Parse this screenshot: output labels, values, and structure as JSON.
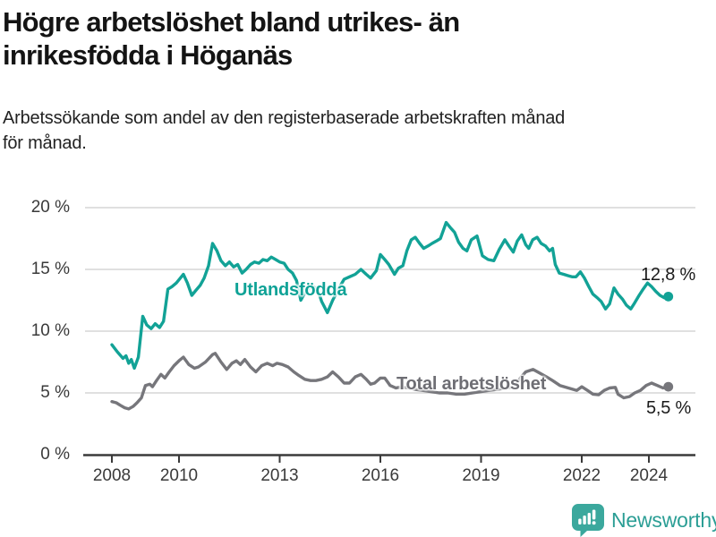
{
  "header": {
    "title_lines": [
      "Högre arbetslöshet bland utrikes- än",
      "inrikesfödda i Höganäs"
    ],
    "subtitle_lines": [
      "Arbetssökande som andel av den registerbaserade arbetskraften månad",
      "för månad."
    ]
  },
  "footer": {
    "brand": "Newsworthy"
  },
  "colors": {
    "teal_line": "#12A296",
    "gray_line": "#76767B",
    "grid": "#E0E0E0",
    "axis": "#3A3A3A",
    "brand_teal": "#3BA89D",
    "brand_text": "#2B9E95"
  },
  "chart_data": {
    "type": "line",
    "title": "Högre arbetslöshet bland utrikes- än inrikesfödda i Höganäs",
    "subtitle": "Arbetssökande som andel av den registerbaserade arbetskraften månad för månad.",
    "unit": "%",
    "ylim": [
      0,
      20
    ],
    "grid": "horizontal",
    "legend_position": "inline-labels",
    "y_axis": {
      "ticks": [
        0,
        5,
        10,
        15,
        20
      ],
      "tick_labels": [
        "0 %",
        "5 %",
        "10 %",
        "15 %",
        "20 %"
      ]
    },
    "x_axis": {
      "ticks": [
        2008,
        2010,
        2013,
        2016,
        2019,
        2022,
        2024
      ],
      "tick_labels": [
        "2008",
        "2010",
        "2013",
        "2016",
        "2019",
        "2022",
        "2024"
      ],
      "range": [
        2007.15,
        2025.4
      ]
    },
    "series": [
      {
        "name": "Utlandsfödda",
        "color": "#12A296",
        "end_label": "12,8 %",
        "end_value": 12.8,
        "points": [
          [
            2008.0,
            8.9
          ],
          [
            2008.17,
            8.3
          ],
          [
            2008.33,
            7.8
          ],
          [
            2008.42,
            8.0
          ],
          [
            2008.5,
            7.4
          ],
          [
            2008.58,
            7.7
          ],
          [
            2008.67,
            7.0
          ],
          [
            2008.79,
            7.9
          ],
          [
            2008.92,
            11.2
          ],
          [
            2009.04,
            10.5
          ],
          [
            2009.17,
            10.2
          ],
          [
            2009.29,
            10.6
          ],
          [
            2009.42,
            10.3
          ],
          [
            2009.54,
            10.8
          ],
          [
            2009.67,
            13.4
          ],
          [
            2009.79,
            13.6
          ],
          [
            2009.92,
            13.9
          ],
          [
            2010.04,
            14.3
          ],
          [
            2010.13,
            14.6
          ],
          [
            2010.25,
            13.9
          ],
          [
            2010.38,
            12.9
          ],
          [
            2010.5,
            13.3
          ],
          [
            2010.63,
            13.7
          ],
          [
            2010.75,
            14.3
          ],
          [
            2010.88,
            15.3
          ],
          [
            2011.0,
            17.1
          ],
          [
            2011.13,
            16.5
          ],
          [
            2011.25,
            15.7
          ],
          [
            2011.38,
            15.3
          ],
          [
            2011.5,
            15.6
          ],
          [
            2011.63,
            15.2
          ],
          [
            2011.75,
            15.4
          ],
          [
            2011.88,
            14.7
          ],
          [
            2012.0,
            15.0
          ],
          [
            2012.13,
            15.4
          ],
          [
            2012.25,
            15.6
          ],
          [
            2012.38,
            15.5
          ],
          [
            2012.5,
            15.8
          ],
          [
            2012.63,
            15.7
          ],
          [
            2012.75,
            16.0
          ],
          [
            2012.88,
            15.8
          ],
          [
            2013.0,
            15.6
          ],
          [
            2013.13,
            15.5
          ],
          [
            2013.25,
            15.0
          ],
          [
            2013.38,
            14.7
          ],
          [
            2013.5,
            14.1
          ],
          [
            2013.63,
            12.5
          ],
          [
            2013.75,
            13.1
          ],
          [
            2013.88,
            13.5
          ],
          [
            2014.0,
            13.6
          ],
          [
            2014.13,
            13.4
          ],
          [
            2014.25,
            12.4
          ],
          [
            2014.42,
            11.5
          ],
          [
            2014.58,
            12.5
          ],
          [
            2014.75,
            13.4
          ],
          [
            2014.92,
            14.2
          ],
          [
            2015.08,
            14.4
          ],
          [
            2015.25,
            14.6
          ],
          [
            2015.42,
            15.0
          ],
          [
            2015.58,
            14.6
          ],
          [
            2015.71,
            14.3
          ],
          [
            2015.88,
            14.9
          ],
          [
            2016.0,
            16.2
          ],
          [
            2016.13,
            15.8
          ],
          [
            2016.25,
            15.4
          ],
          [
            2016.42,
            14.6
          ],
          [
            2016.54,
            15.1
          ],
          [
            2016.67,
            15.3
          ],
          [
            2016.79,
            16.5
          ],
          [
            2016.92,
            17.4
          ],
          [
            2017.04,
            17.6
          ],
          [
            2017.17,
            17.1
          ],
          [
            2017.29,
            16.7
          ],
          [
            2017.42,
            16.9
          ],
          [
            2017.54,
            17.1
          ],
          [
            2017.67,
            17.3
          ],
          [
            2017.79,
            17.5
          ],
          [
            2017.96,
            18.8
          ],
          [
            2018.08,
            18.4
          ],
          [
            2018.21,
            18.0
          ],
          [
            2018.33,
            17.2
          ],
          [
            2018.46,
            16.7
          ],
          [
            2018.58,
            16.5
          ],
          [
            2018.71,
            17.4
          ],
          [
            2018.88,
            17.7
          ],
          [
            2019.04,
            16.1
          ],
          [
            2019.21,
            15.8
          ],
          [
            2019.38,
            15.7
          ],
          [
            2019.54,
            16.6
          ],
          [
            2019.71,
            17.4
          ],
          [
            2019.83,
            16.9
          ],
          [
            2019.96,
            16.4
          ],
          [
            2020.08,
            17.3
          ],
          [
            2020.21,
            17.8
          ],
          [
            2020.33,
            17.0
          ],
          [
            2020.42,
            16.7
          ],
          [
            2020.54,
            17.4
          ],
          [
            2020.67,
            17.6
          ],
          [
            2020.79,
            17.1
          ],
          [
            2020.92,
            16.9
          ],
          [
            2021.04,
            16.5
          ],
          [
            2021.13,
            16.7
          ],
          [
            2021.21,
            15.4
          ],
          [
            2021.33,
            14.7
          ],
          [
            2021.46,
            14.6
          ],
          [
            2021.58,
            14.5
          ],
          [
            2021.71,
            14.4
          ],
          [
            2021.83,
            14.4
          ],
          [
            2021.96,
            14.8
          ],
          [
            2022.08,
            14.3
          ],
          [
            2022.21,
            13.6
          ],
          [
            2022.33,
            13.0
          ],
          [
            2022.46,
            12.7
          ],
          [
            2022.58,
            12.4
          ],
          [
            2022.71,
            11.8
          ],
          [
            2022.83,
            12.2
          ],
          [
            2022.96,
            13.5
          ],
          [
            2023.08,
            13.0
          ],
          [
            2023.21,
            12.6
          ],
          [
            2023.33,
            12.1
          ],
          [
            2023.46,
            11.8
          ],
          [
            2023.58,
            12.3
          ],
          [
            2023.71,
            12.9
          ],
          [
            2023.83,
            13.4
          ],
          [
            2023.96,
            13.9
          ],
          [
            2024.08,
            13.6
          ],
          [
            2024.21,
            13.2
          ],
          [
            2024.33,
            12.9
          ],
          [
            2024.46,
            12.7
          ],
          [
            2024.58,
            12.8
          ]
        ]
      },
      {
        "name": "Total arbetslöshet",
        "color": "#76767B",
        "end_label": "5,5 %",
        "end_value": 5.5,
        "points": [
          [
            2008.0,
            4.3
          ],
          [
            2008.13,
            4.2
          ],
          [
            2008.25,
            4.0
          ],
          [
            2008.38,
            3.8
          ],
          [
            2008.5,
            3.7
          ],
          [
            2008.63,
            3.9
          ],
          [
            2008.75,
            4.2
          ],
          [
            2008.88,
            4.6
          ],
          [
            2009.0,
            5.6
          ],
          [
            2009.13,
            5.7
          ],
          [
            2009.21,
            5.5
          ],
          [
            2009.33,
            6.0
          ],
          [
            2009.46,
            6.5
          ],
          [
            2009.58,
            6.2
          ],
          [
            2009.71,
            6.7
          ],
          [
            2009.85,
            7.2
          ],
          [
            2010.0,
            7.6
          ],
          [
            2010.13,
            7.9
          ],
          [
            2010.29,
            7.3
          ],
          [
            2010.46,
            7.0
          ],
          [
            2010.58,
            7.1
          ],
          [
            2010.79,
            7.5
          ],
          [
            2011.0,
            8.1
          ],
          [
            2011.08,
            8.2
          ],
          [
            2011.25,
            7.5
          ],
          [
            2011.42,
            6.9
          ],
          [
            2011.58,
            7.4
          ],
          [
            2011.71,
            7.6
          ],
          [
            2011.83,
            7.3
          ],
          [
            2011.96,
            7.7
          ],
          [
            2012.13,
            7.1
          ],
          [
            2012.29,
            6.7
          ],
          [
            2012.46,
            7.2
          ],
          [
            2012.63,
            7.4
          ],
          [
            2012.79,
            7.2
          ],
          [
            2012.92,
            7.4
          ],
          [
            2013.08,
            7.3
          ],
          [
            2013.25,
            7.1
          ],
          [
            2013.42,
            6.7
          ],
          [
            2013.58,
            6.4
          ],
          [
            2013.75,
            6.1
          ],
          [
            2013.92,
            6.0
          ],
          [
            2014.08,
            6.0
          ],
          [
            2014.25,
            6.1
          ],
          [
            2014.42,
            6.3
          ],
          [
            2014.58,
            6.7
          ],
          [
            2014.75,
            6.3
          ],
          [
            2014.92,
            5.8
          ],
          [
            2015.08,
            5.8
          ],
          [
            2015.25,
            6.3
          ],
          [
            2015.42,
            6.5
          ],
          [
            2015.58,
            6.1
          ],
          [
            2015.71,
            5.7
          ],
          [
            2015.83,
            5.8
          ],
          [
            2016.0,
            6.2
          ],
          [
            2016.13,
            6.2
          ],
          [
            2016.29,
            5.6
          ],
          [
            2016.46,
            5.4
          ],
          [
            2016.63,
            5.5
          ],
          [
            2016.83,
            5.4
          ],
          [
            2017.0,
            5.3
          ],
          [
            2017.25,
            5.2
          ],
          [
            2017.5,
            5.1
          ],
          [
            2017.75,
            5.0
          ],
          [
            2018.0,
            5.0
          ],
          [
            2018.25,
            4.9
          ],
          [
            2018.5,
            4.9
          ],
          [
            2018.75,
            5.0
          ],
          [
            2019.0,
            5.1
          ],
          [
            2019.25,
            5.2
          ],
          [
            2019.5,
            5.3
          ],
          [
            2019.75,
            5.4
          ],
          [
            2020.0,
            5.5
          ],
          [
            2020.17,
            6.2
          ],
          [
            2020.33,
            6.7
          ],
          [
            2020.55,
            6.9
          ],
          [
            2020.75,
            6.6
          ],
          [
            2020.95,
            6.3
          ],
          [
            2021.13,
            6.0
          ],
          [
            2021.35,
            5.6
          ],
          [
            2021.6,
            5.4
          ],
          [
            2021.85,
            5.2
          ],
          [
            2022.0,
            5.5
          ],
          [
            2022.17,
            5.2
          ],
          [
            2022.33,
            4.9
          ],
          [
            2022.5,
            4.85
          ],
          [
            2022.67,
            5.2
          ],
          [
            2022.83,
            5.4
          ],
          [
            2023.0,
            5.45
          ],
          [
            2023.08,
            4.9
          ],
          [
            2023.25,
            4.6
          ],
          [
            2023.42,
            4.7
          ],
          [
            2023.58,
            5.0
          ],
          [
            2023.75,
            5.2
          ],
          [
            2023.92,
            5.6
          ],
          [
            2024.08,
            5.8
          ],
          [
            2024.25,
            5.6
          ],
          [
            2024.42,
            5.4
          ],
          [
            2024.58,
            5.5
          ]
        ]
      }
    ]
  }
}
